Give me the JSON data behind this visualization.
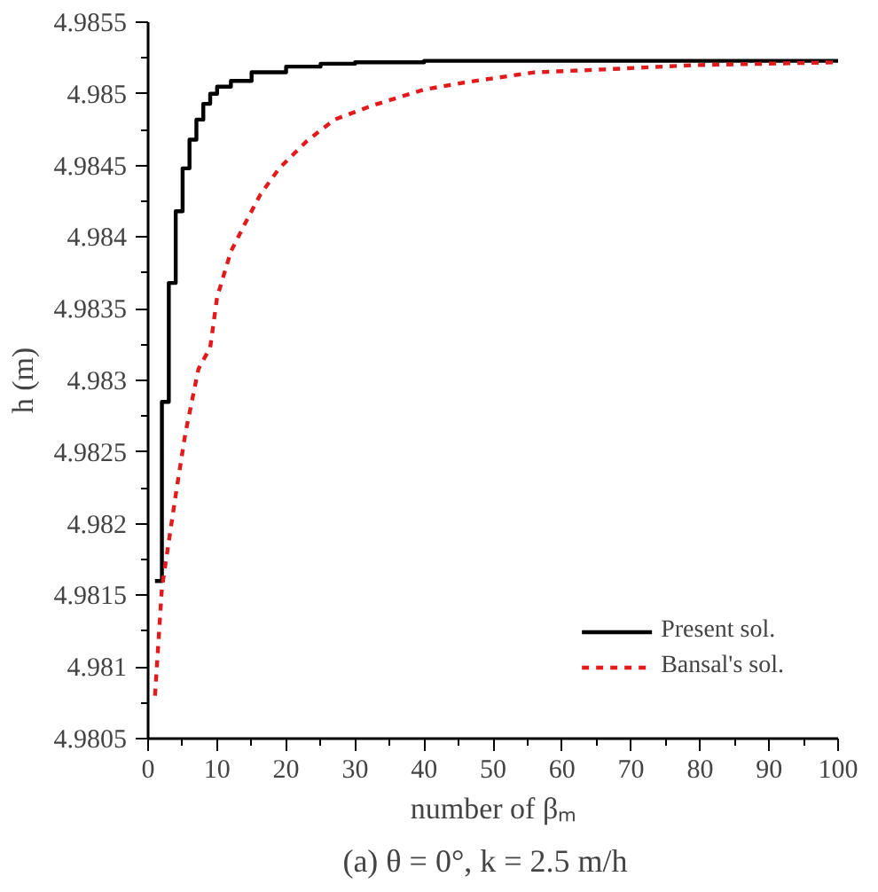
{
  "chart_data": {
    "type": "line",
    "xlabel": "number of βₘ",
    "ylabel": "h (m)",
    "xlim": [
      0,
      100
    ],
    "ylim": [
      4.9805,
      4.9855
    ],
    "xticks": [
      0,
      10,
      20,
      30,
      40,
      50,
      60,
      70,
      80,
      90,
      100
    ],
    "yticks": [
      4.9805,
      4.981,
      4.9815,
      4.982,
      4.9825,
      4.983,
      4.9835,
      4.984,
      4.9845,
      4.985,
      4.9855
    ],
    "grid": false,
    "legend": "bottom right",
    "marker": "none",
    "series": [
      {
        "name": "Present sol.",
        "color": "#000000",
        "line_style": "solid",
        "type": "step",
        "x": [
          1,
          2,
          3,
          4,
          5,
          6,
          7,
          8,
          9,
          10,
          12,
          15,
          20,
          25,
          30,
          40,
          50,
          60,
          80,
          100
        ],
        "values": [
          4.9816,
          4.98285,
          4.98368,
          4.98418,
          4.98448,
          4.98468,
          4.98482,
          4.98493,
          4.985,
          4.98505,
          4.98509,
          4.98515,
          4.98519,
          4.98521,
          4.98522,
          4.98523,
          4.98523,
          4.98523,
          4.98523,
          4.98523
        ]
      },
      {
        "name": "Bansal's sol.",
        "color": "#e31a1c",
        "line_style": "dashed",
        "x": [
          1,
          2,
          4,
          5.4,
          7.3,
          9,
          10,
          12,
          14,
          16.3,
          19,
          23,
          27,
          32.6,
          40,
          46,
          56,
          66,
          79,
          100
        ],
        "values": [
          4.9808,
          4.98155,
          4.9822,
          4.98263,
          4.98308,
          4.98323,
          4.98358,
          4.9839,
          4.98409,
          4.9843,
          4.98448,
          4.98467,
          4.98482,
          4.98492,
          4.98503,
          4.98508,
          4.98515,
          4.98517,
          4.9852,
          4.98522
        ]
      }
    ],
    "annotations": [
      "(a)  θ = 0°,  k = 2.5 m/h"
    ]
  }
}
